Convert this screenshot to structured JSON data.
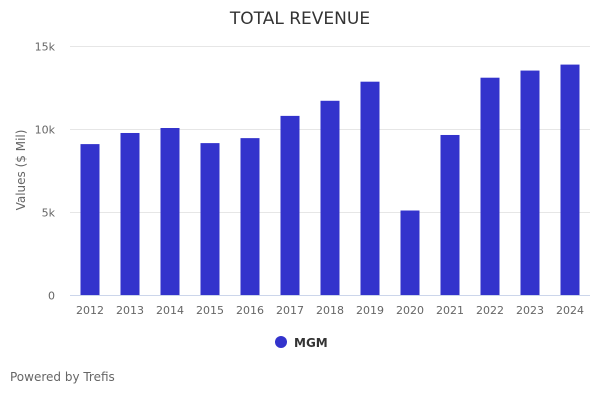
{
  "chart_data": {
    "type": "bar",
    "title": "TOTAL REVENUE",
    "xlabel": "",
    "ylabel": "Values ($ Mil)",
    "categories": [
      "2012",
      "2013",
      "2014",
      "2015",
      "2016",
      "2017",
      "2018",
      "2019",
      "2020",
      "2021",
      "2022",
      "2023",
      "2024"
    ],
    "series": [
      {
        "name": "MGM",
        "color": "#3333cc",
        "values": [
          9090,
          9760,
          10060,
          9150,
          9450,
          10790,
          11700,
          12850,
          5090,
          9640,
          13090,
          13520,
          13880
        ]
      }
    ],
    "ylim": [
      0,
      15000
    ],
    "yticks": [
      0,
      5000,
      10000,
      15000
    ],
    "ytick_labels": [
      "0",
      "5k",
      "10k",
      "15k"
    ],
    "grid": true,
    "legend": "bottom-center"
  },
  "credit": "Powered by Trefis"
}
